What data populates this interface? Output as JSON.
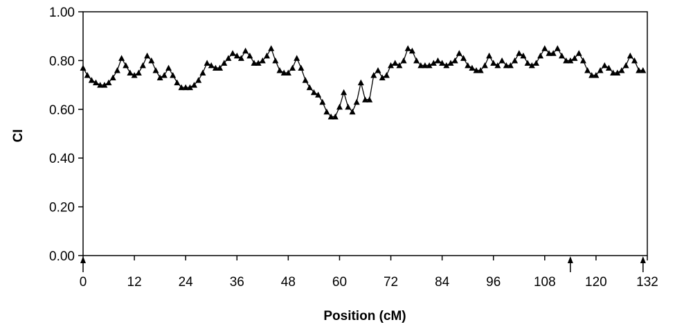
{
  "chart_data": {
    "type": "line",
    "xlabel": "Position (cM)",
    "ylabel": "CI",
    "xlim": [
      0,
      132
    ],
    "ylim": [
      0,
      1.0
    ],
    "x_ticks": [
      "0",
      "12",
      "24",
      "36",
      "48",
      "60",
      "72",
      "84",
      "96",
      "108",
      "120",
      "132"
    ],
    "y_ticks": [
      "0.00",
      "0.20",
      "0.40",
      "0.60",
      "0.80",
      "1.00"
    ],
    "grid": false,
    "legend": "none",
    "marker": "triangle",
    "line_color": "#000000",
    "marker_color": "#000000",
    "axis_markers_x": [
      0,
      114,
      131
    ],
    "series": [
      {
        "x": [
          0,
          1,
          2,
          3,
          4,
          5,
          6,
          7,
          8,
          9,
          10,
          11,
          12,
          13,
          14,
          15,
          16,
          17,
          18,
          19,
          20,
          21,
          22,
          23,
          24,
          25,
          26,
          27,
          28,
          29,
          30,
          31,
          32,
          33,
          34,
          35,
          36,
          37,
          38,
          39,
          40,
          41,
          42,
          43,
          44,
          45,
          46,
          47,
          48,
          49,
          50,
          51,
          52,
          53,
          54,
          55,
          56,
          57,
          58,
          59,
          60,
          61,
          62,
          63,
          64,
          65,
          66,
          67,
          68,
          69,
          70,
          71,
          72,
          73,
          74,
          75,
          76,
          77,
          78,
          79,
          80,
          81,
          82,
          83,
          84,
          85,
          86,
          87,
          88,
          89,
          90,
          91,
          92,
          93,
          94,
          95,
          96,
          97,
          98,
          99,
          100,
          101,
          102,
          103,
          104,
          105,
          106,
          107,
          108,
          109,
          110,
          111,
          112,
          113,
          114,
          115,
          116,
          117,
          118,
          119,
          120,
          121,
          122,
          123,
          124,
          125,
          126,
          127,
          128,
          129,
          130,
          131
        ],
        "values": [
          0.77,
          0.74,
          0.72,
          0.71,
          0.7,
          0.7,
          0.71,
          0.73,
          0.76,
          0.81,
          0.78,
          0.75,
          0.74,
          0.75,
          0.78,
          0.82,
          0.8,
          0.76,
          0.73,
          0.74,
          0.77,
          0.74,
          0.71,
          0.69,
          0.69,
          0.69,
          0.7,
          0.72,
          0.75,
          0.79,
          0.78,
          0.77,
          0.77,
          0.79,
          0.81,
          0.83,
          0.82,
          0.81,
          0.84,
          0.82,
          0.79,
          0.79,
          0.8,
          0.82,
          0.85,
          0.8,
          0.76,
          0.75,
          0.75,
          0.77,
          0.81,
          0.77,
          0.72,
          0.69,
          0.67,
          0.66,
          0.63,
          0.59,
          0.57,
          0.57,
          0.61,
          0.67,
          0.61,
          0.59,
          0.63,
          0.71,
          0.64,
          0.64,
          0.74,
          0.76,
          0.73,
          0.74,
          0.78,
          0.79,
          0.78,
          0.8,
          0.85,
          0.84,
          0.8,
          0.78,
          0.78,
          0.78,
          0.79,
          0.8,
          0.79,
          0.78,
          0.79,
          0.8,
          0.83,
          0.81,
          0.78,
          0.77,
          0.76,
          0.76,
          0.78,
          0.82,
          0.79,
          0.78,
          0.8,
          0.78,
          0.78,
          0.8,
          0.83,
          0.82,
          0.79,
          0.78,
          0.79,
          0.82,
          0.85,
          0.83,
          0.83,
          0.85,
          0.82,
          0.8,
          0.8,
          0.81,
          0.83,
          0.8,
          0.76,
          0.74,
          0.74,
          0.76,
          0.78,
          0.77,
          0.75,
          0.75,
          0.76,
          0.78,
          0.82,
          0.8,
          0.76,
          0.76
        ]
      }
    ]
  }
}
